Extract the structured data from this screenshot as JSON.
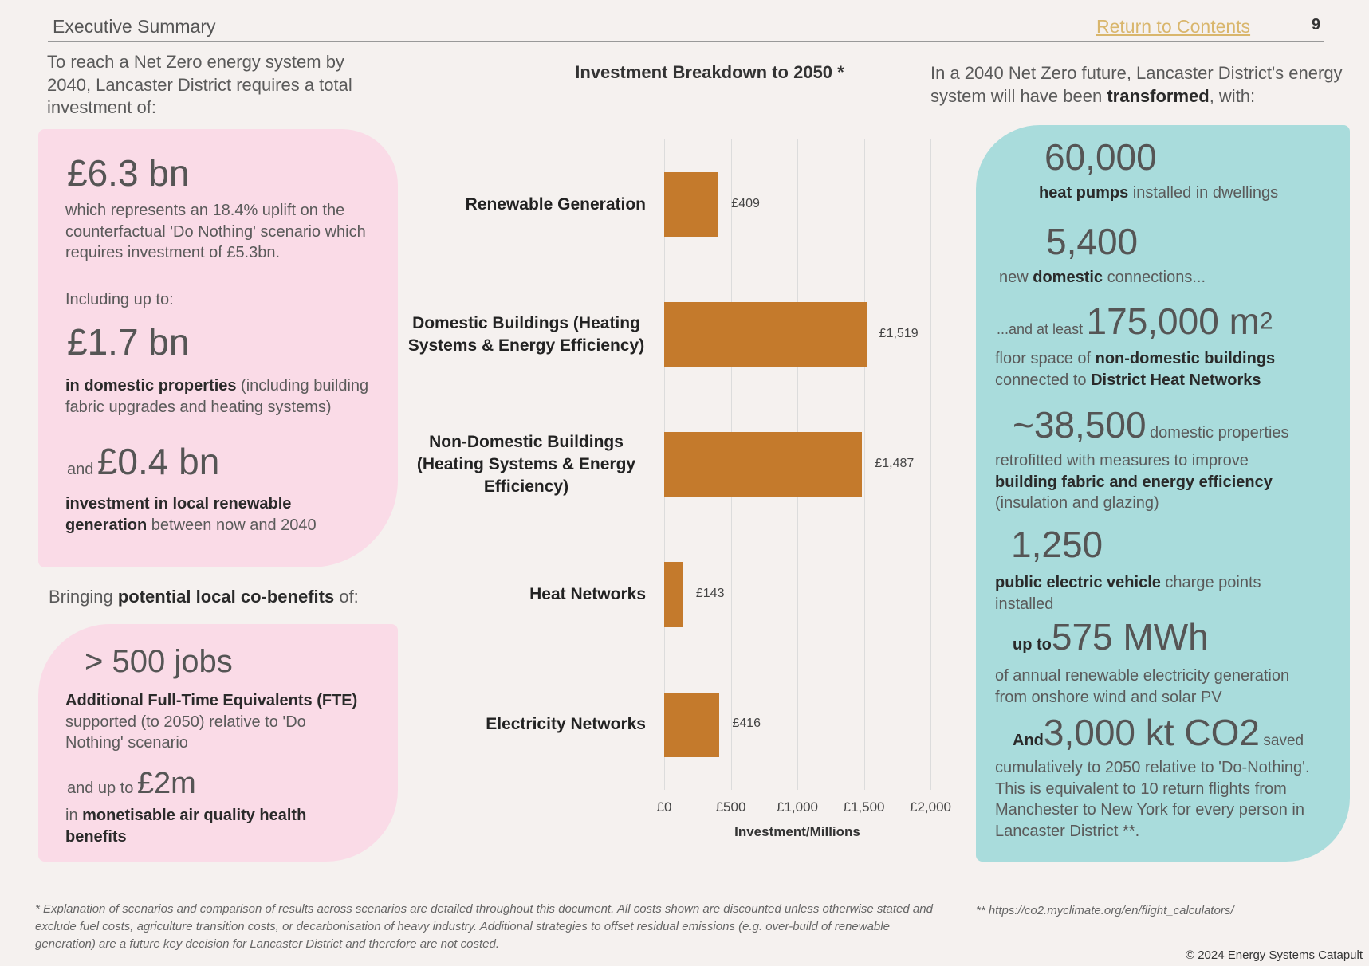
{
  "header": {
    "section": "Executive Summary",
    "link": "Return to Contents",
    "page": "9"
  },
  "left": {
    "intro": "To reach a Net Zero energy system by 2040, Lancaster District requires a total investment of:",
    "total": "£6.3 bn",
    "total_note": "which represents an 18.4% uplift on the counterfactual 'Do Nothing' scenario which requires investment of £5.3bn.",
    "including": "Including up to:",
    "domestic": "£1.7 bn",
    "domestic_note": [
      "in domestic properties",
      " (including building fabric upgrades and heating systems)"
    ],
    "renewable_prefix": "and",
    "renewable": "£0.4 bn",
    "renewable_note": [
      "investment in local renewable generation",
      " between now and 2040"
    ],
    "cobenefits": [
      "Bringing ",
      "potential local co-benefits",
      " of:"
    ],
    "jobs": "> 500 jobs",
    "jobs_note": [
      "Additional Full-Time Equivalents (FTE)",
      " supported (to 2050) relative to 'Do Nothing' scenario"
    ],
    "health_prefix": "and up to",
    "health": "£2m",
    "health_note": [
      "in ",
      "monetisable air quality health benefits"
    ]
  },
  "chart_data": {
    "type": "bar",
    "orientation": "horizontal",
    "title": "Investment Breakdown to 2050 *",
    "x_label": "Investment/Millions",
    "categories": [
      "Renewable Generation",
      "Domestic Buildings (Heating Systems & Energy Efficiency)",
      "Non-Domestic Buildings (Heating Systems & Energy Efficiency)",
      "Heat Networks",
      "Electricity Networks"
    ],
    "values": [
      409,
      1519,
      1487,
      143,
      416
    ],
    "value_labels": [
      "£409",
      "£1,519",
      "£1,487",
      "£143",
      "£416"
    ],
    "color": "#c47a2c",
    "xlim": [
      0,
      2000
    ],
    "xticks": [
      {
        "value": 0,
        "label": "£0"
      },
      {
        "value": 500,
        "label": "£500"
      },
      {
        "value": 1000,
        "label": "£1,000"
      },
      {
        "value": 1500,
        "label": "£1,500"
      },
      {
        "value": 2000,
        "label": "£2,000"
      }
    ],
    "grid": true
  },
  "right": {
    "intro": [
      "In a 2040 Net Zero future, Lancaster District's energy system will have been ",
      "transformed",
      ", with:"
    ],
    "items": [
      {
        "figure": "60,000",
        "text": [
          "heat pumps",
          " installed in dwellings"
        ]
      },
      {
        "figure": "5,400",
        "text": [
          "new ",
          "domestic",
          " connections..."
        ]
      },
      {
        "prefix": "...and at least",
        "figure": "175,000 m",
        "sup": "2",
        "text": [
          "floor space of ",
          "non-domestic buildings",
          " connected to ",
          "District Heat Networks"
        ]
      },
      {
        "figure": "~38,500",
        "suffix": "domestic properties",
        "text": [
          "retrofitted with measures to improve ",
          "building fabric and energy efficiency",
          " (insulation and glazing)"
        ]
      },
      {
        "figure": "1,250",
        "text": [
          "public electric vehicle",
          " charge points installed"
        ]
      },
      {
        "prefix": "up to",
        "figure": "575 MWh",
        "text": [
          "of annual renewable electricity generation from onshore wind and solar PV"
        ]
      },
      {
        "prefix": "And",
        "figure": "3,000 kt CO2",
        "suffix": "saved",
        "text": [
          "cumulatively to 2050 relative to 'Do-Nothing'. This is equivalent to 10 return flights from Manchester to New York for every person in Lancaster District **."
        ]
      }
    ]
  },
  "footer": {
    "note": "* Explanation of scenarios and comparison of results across scenarios are detailed throughout this document. All costs shown are discounted unless otherwise stated and exclude fuel costs, agriculture transition costs, or decarbonisation of heavy industry. Additional strategies to offset residual emissions (e.g. over-build of renewable generation) are a future key decision for Lancaster District and therefore are not costed.",
    "reference": "** https://co2.myclimate.org/en/flight_calculators/",
    "copyright": "© 2024 Energy Systems Catapult"
  }
}
